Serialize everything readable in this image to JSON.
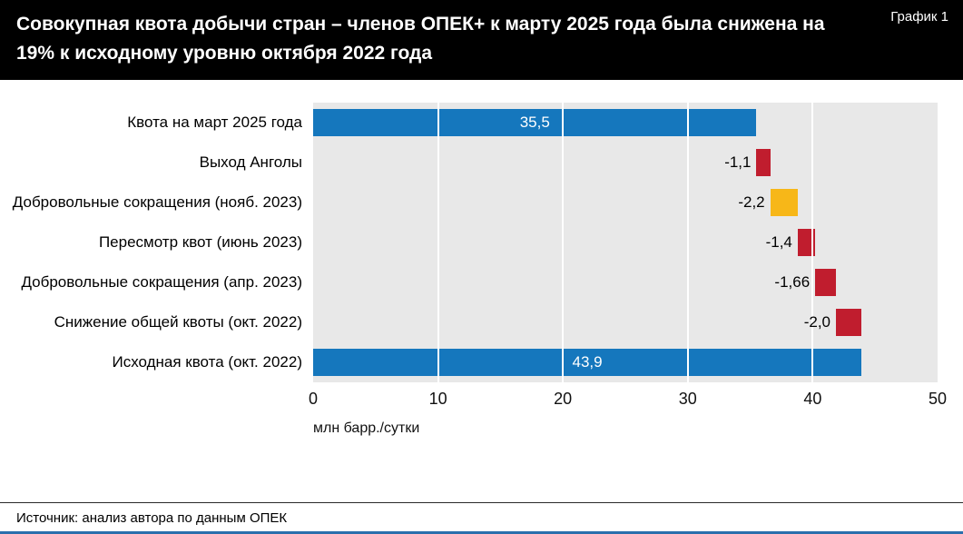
{
  "header": {
    "title": "Совокупная квота добычи стран – членов ОПЕК+ к марту 2025 года была снижена на 19% к исходному уровню октября 2022 года",
    "chart_number": "График 1"
  },
  "footer": {
    "source": "Источник: анализ автора по данным ОПЕК"
  },
  "chart_data": {
    "type": "bar",
    "subtype": "waterfall",
    "orientation": "horizontal",
    "title": "Совокупная квота добычи стран – членов ОПЕК+ к марту 2025 года была снижена на 19% к исходному уровню октября 2022 года",
    "xlabel": "млн барр./сутки",
    "xlim": [
      0,
      50
    ],
    "x_ticks": [
      0,
      10,
      20,
      30,
      40,
      50
    ],
    "grid": "vertical-white-lines",
    "plot_background": "#e8e8e8",
    "colors": {
      "blue": "#1577bd",
      "red": "#c01d2e",
      "yellow": "#f7b718"
    },
    "bars": [
      {
        "category": "Квота на март 2025 года",
        "start": 0,
        "end": 35.5,
        "value": 35.5,
        "value_label": "35,5",
        "color": "blue",
        "label_placement": "inside"
      },
      {
        "category": "Выход Анголы",
        "start": 35.5,
        "end": 36.6,
        "value": -1.1,
        "value_label": "-1,1",
        "color": "red",
        "label_placement": "outside"
      },
      {
        "category": "Добровольные сокращения (нояб. 2023)",
        "start": 36.6,
        "end": 38.8,
        "value": -2.2,
        "value_label": "-2,2",
        "color": "yellow",
        "label_placement": "outside"
      },
      {
        "category": "Пересмотр квот (июнь 2023)",
        "start": 38.8,
        "end": 40.2,
        "value": -1.4,
        "value_label": "-1,4",
        "color": "red",
        "label_placement": "outside"
      },
      {
        "category": "Добровольные сокращения (апр. 2023)",
        "start": 40.2,
        "end": 41.86,
        "value": -1.66,
        "value_label": "-1,66",
        "color": "red",
        "label_placement": "outside"
      },
      {
        "category": "Снижение общей квоты (окт. 2022)",
        "start": 41.86,
        "end": 43.86,
        "value": -2.0,
        "value_label": "-2,0",
        "color": "red",
        "label_placement": "outside"
      },
      {
        "category": "Исходная квота (окт. 2022)",
        "start": 0,
        "end": 43.9,
        "value": 43.9,
        "value_label": "43,9",
        "color": "blue",
        "label_placement": "inside"
      }
    ]
  }
}
